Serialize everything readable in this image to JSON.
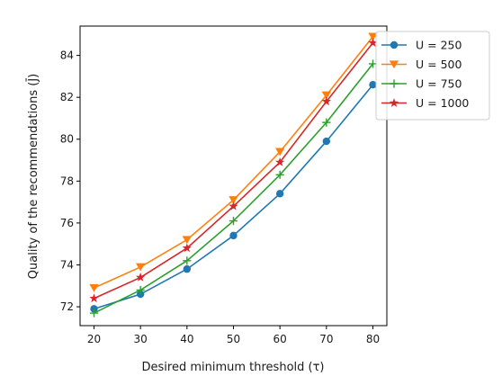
{
  "chart_data": {
    "type": "line",
    "title": "",
    "xlabel": "Desired minimum threshold (τ)",
    "ylabel": "Quality of the recommendations (J̄)",
    "x": [
      20,
      30,
      40,
      50,
      60,
      70,
      80
    ],
    "xticks": [
      "20",
      "30",
      "40",
      "50",
      "60",
      "70",
      "80"
    ],
    "yticks": [
      "72",
      "74",
      "76",
      "78",
      "80",
      "82",
      "84"
    ],
    "xlim": [
      17,
      83
    ],
    "ylim": [
      71.1,
      85.4
    ],
    "grid": false,
    "legend_position": "upper-right",
    "series": [
      {
        "name": "U = 250",
        "color": "#1f77b4",
        "marker": "circle",
        "values": [
          71.9,
          72.6,
          73.8,
          75.4,
          77.4,
          79.9,
          82.6
        ]
      },
      {
        "name": "U = 500",
        "color": "#ff7f0e",
        "marker": "triangle-down",
        "values": [
          72.9,
          73.9,
          75.2,
          77.1,
          79.4,
          82.1,
          84.9
        ]
      },
      {
        "name": "U = 750",
        "color": "#2ca02c",
        "marker": "plus",
        "values": [
          71.7,
          72.8,
          74.2,
          76.1,
          78.3,
          80.8,
          83.6
        ]
      },
      {
        "name": "U = 1000",
        "color": "#d62728",
        "marker": "star",
        "values": [
          72.4,
          73.4,
          74.8,
          76.8,
          78.9,
          81.8,
          84.6
        ]
      }
    ]
  }
}
